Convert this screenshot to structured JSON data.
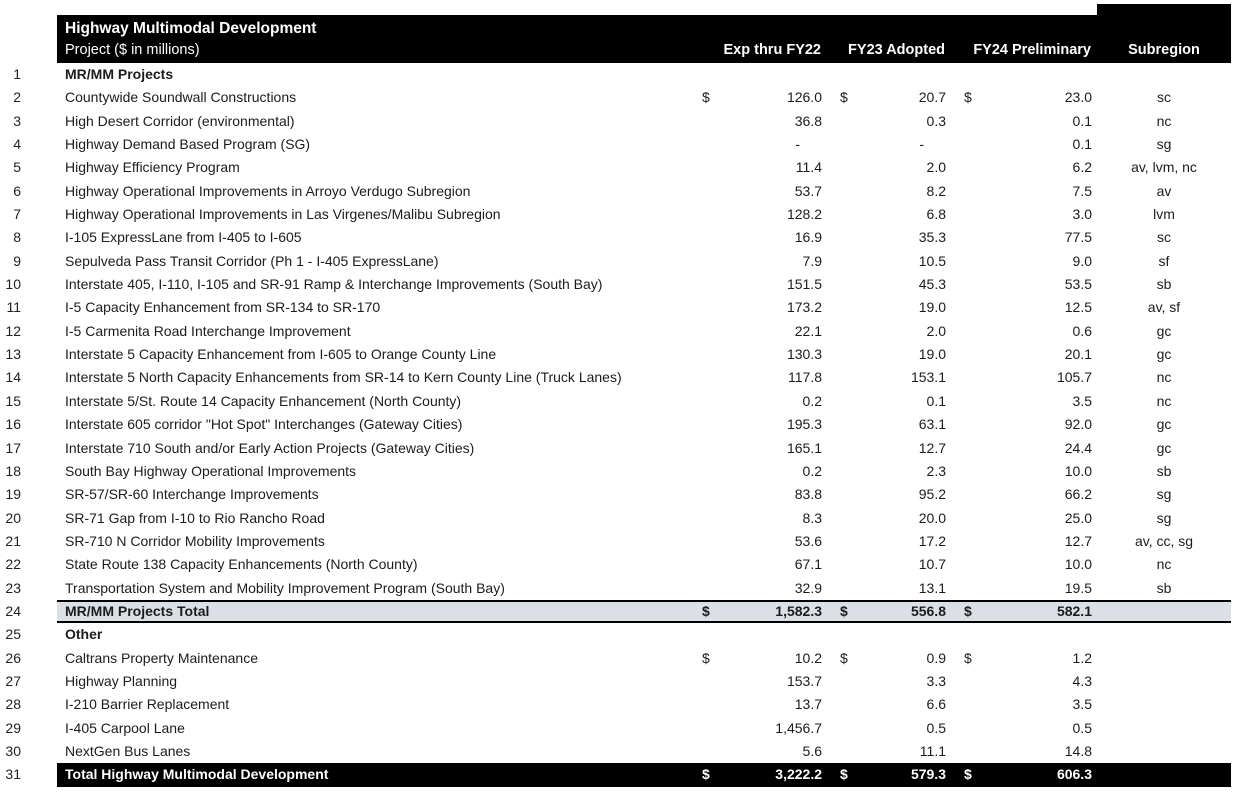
{
  "header": {
    "title": "Highway Multimodal Development",
    "subtitle": "Project ($ in millions)",
    "columns": [
      "Exp thru FY22",
      "FY23 Adopted",
      "FY24 Preliminary",
      "Subregion"
    ]
  },
  "currency": "$",
  "colors": {
    "header_bg": "#000000",
    "header_text": "#ffffff",
    "total_gray_bg": "#dbe0e7",
    "total_black_bg": "#000000",
    "total_black_text": "#ffffff",
    "body_text": "#1c1c1c"
  },
  "table": {
    "rows": [
      {
        "num": "1",
        "type": "section",
        "name": "MR/MM Projects",
        "exp": "",
        "fy23": "",
        "fy24": "",
        "sub": ""
      },
      {
        "num": "2",
        "type": "item",
        "dollar": true,
        "name": "Countywide Soundwall Constructions",
        "exp": "126.0",
        "fy23": "20.7",
        "fy24": "23.0",
        "sub": "sc"
      },
      {
        "num": "3",
        "type": "item",
        "name": "High Desert Corridor (environmental)",
        "exp": "36.8",
        "fy23": "0.3",
        "fy24": "0.1",
        "sub": "nc"
      },
      {
        "num": "4",
        "type": "item",
        "name": "Highway Demand Based Program (SG)",
        "exp": "-",
        "fy23": "-",
        "fy24": "0.1",
        "sub": "sg"
      },
      {
        "num": "5",
        "type": "item",
        "name": "Highway Efficiency Program",
        "exp": "11.4",
        "fy23": "2.0",
        "fy24": "6.2",
        "sub": "av, lvm, nc"
      },
      {
        "num": "6",
        "type": "item",
        "name": "Highway Operational Improvements in Arroyo Verdugo Subregion",
        "exp": "53.7",
        "fy23": "8.2",
        "fy24": "7.5",
        "sub": "av"
      },
      {
        "num": "7",
        "type": "item",
        "name": "Highway Operational Improvements in Las Virgenes/Malibu Subregion",
        "exp": "128.2",
        "fy23": "6.8",
        "fy24": "3.0",
        "sub": "lvm"
      },
      {
        "num": "8",
        "type": "item",
        "name": "I-105 ExpressLane from I-405 to I-605",
        "exp": "16.9",
        "fy23": "35.3",
        "fy24": "77.5",
        "sub": "sc"
      },
      {
        "num": "9",
        "type": "item",
        "name": "Sepulveda Pass Transit Corridor (Ph 1 - I-405 ExpressLane)",
        "exp": "7.9",
        "fy23": "10.5",
        "fy24": "9.0",
        "sub": "sf"
      },
      {
        "num": "10",
        "type": "item",
        "name": "Interstate 405, I-110, I-105 and SR-91 Ramp & Interchange Improvements (South Bay)",
        "exp": "151.5",
        "fy23": "45.3",
        "fy24": "53.5",
        "sub": "sb"
      },
      {
        "num": "11",
        "type": "item",
        "name": "I-5 Capacity Enhancement from SR-134 to SR-170",
        "exp": "173.2",
        "fy23": "19.0",
        "fy24": "12.5",
        "sub": "av, sf"
      },
      {
        "num": "12",
        "type": "item",
        "name": "I-5 Carmenita Road Interchange Improvement",
        "exp": "22.1",
        "fy23": "2.0",
        "fy24": "0.6",
        "sub": "gc"
      },
      {
        "num": "13",
        "type": "item",
        "name": "Interstate 5 Capacity Enhancement from I-605 to Orange County Line",
        "exp": "130.3",
        "fy23": "19.0",
        "fy24": "20.1",
        "sub": "gc"
      },
      {
        "num": "14",
        "type": "item",
        "name": "Interstate 5 North Capacity Enhancements from SR-14 to Kern County Line (Truck Lanes)",
        "exp": "117.8",
        "fy23": "153.1",
        "fy24": "105.7",
        "sub": "nc"
      },
      {
        "num": "15",
        "type": "item",
        "name": "Interstate 5/St. Route 14 Capacity Enhancement (North County)",
        "exp": "0.2",
        "fy23": "0.1",
        "fy24": "3.5",
        "sub": "nc"
      },
      {
        "num": "16",
        "type": "item",
        "name": "Interstate 605 corridor \"Hot Spot\" Interchanges (Gateway Cities)",
        "exp": "195.3",
        "fy23": "63.1",
        "fy24": "92.0",
        "sub": "gc"
      },
      {
        "num": "17",
        "type": "item",
        "name": "Interstate 710 South and/or Early Action Projects (Gateway Cities)",
        "exp": "165.1",
        "fy23": "12.7",
        "fy24": "24.4",
        "sub": "gc"
      },
      {
        "num": "18",
        "type": "item",
        "name": "South Bay Highway Operational Improvements",
        "exp": "0.2",
        "fy23": "2.3",
        "fy24": "10.0",
        "sub": "sb"
      },
      {
        "num": "19",
        "type": "item",
        "name": "SR-57/SR-60 Interchange Improvements",
        "exp": "83.8",
        "fy23": "95.2",
        "fy24": "66.2",
        "sub": "sg"
      },
      {
        "num": "20",
        "type": "item",
        "name": "SR-71 Gap from I-10 to Rio Rancho Road",
        "exp": "8.3",
        "fy23": "20.0",
        "fy24": "25.0",
        "sub": "sg"
      },
      {
        "num": "21",
        "type": "item",
        "name": "SR-710 N Corridor Mobility Improvements",
        "exp": "53.6",
        "fy23": "17.2",
        "fy24": "12.7",
        "sub": "av, cc, sg"
      },
      {
        "num": "22",
        "type": "item",
        "name": "State Route 138 Capacity Enhancements (North County)",
        "exp": "67.1",
        "fy23": "10.7",
        "fy24": "10.0",
        "sub": "nc"
      },
      {
        "num": "23",
        "type": "item",
        "name": "Transportation System and Mobility Improvement Program (South Bay)",
        "exp": "32.9",
        "fy23": "13.1",
        "fy24": "19.5",
        "sub": "sb"
      },
      {
        "num": "24",
        "type": "total-gray",
        "dollar": true,
        "name": "MR/MM Projects Total",
        "exp": "1,582.3",
        "fy23": "556.8",
        "fy24": "582.1",
        "sub": ""
      },
      {
        "num": "25",
        "type": "section",
        "name": "Other",
        "exp": "",
        "fy23": "",
        "fy24": "",
        "sub": ""
      },
      {
        "num": "26",
        "type": "item",
        "dollar": true,
        "name": "Caltrans Property Maintenance",
        "exp": "10.2",
        "fy23": "0.9",
        "fy24": "1.2",
        "sub": ""
      },
      {
        "num": "27",
        "type": "item",
        "name": "Highway Planning",
        "exp": "153.7",
        "fy23": "3.3",
        "fy24": "4.3",
        "sub": ""
      },
      {
        "num": "28",
        "type": "item",
        "name": "I-210 Barrier Replacement",
        "exp": "13.7",
        "fy23": "6.6",
        "fy24": "3.5",
        "sub": ""
      },
      {
        "num": "29",
        "type": "item",
        "name": "I-405 Carpool Lane",
        "exp": "1,456.7",
        "fy23": "0.5",
        "fy24": "0.5",
        "sub": ""
      },
      {
        "num": "30",
        "type": "item",
        "name": "NextGen Bus Lanes",
        "exp": "5.6",
        "fy23": "11.1",
        "fy24": "14.8",
        "sub": ""
      },
      {
        "num": "31",
        "type": "total-black",
        "dollar": true,
        "name": "Total Highway Multimodal Development",
        "exp": "3,222.2",
        "fy23": "579.3",
        "fy24": "606.3",
        "sub": ""
      }
    ]
  }
}
